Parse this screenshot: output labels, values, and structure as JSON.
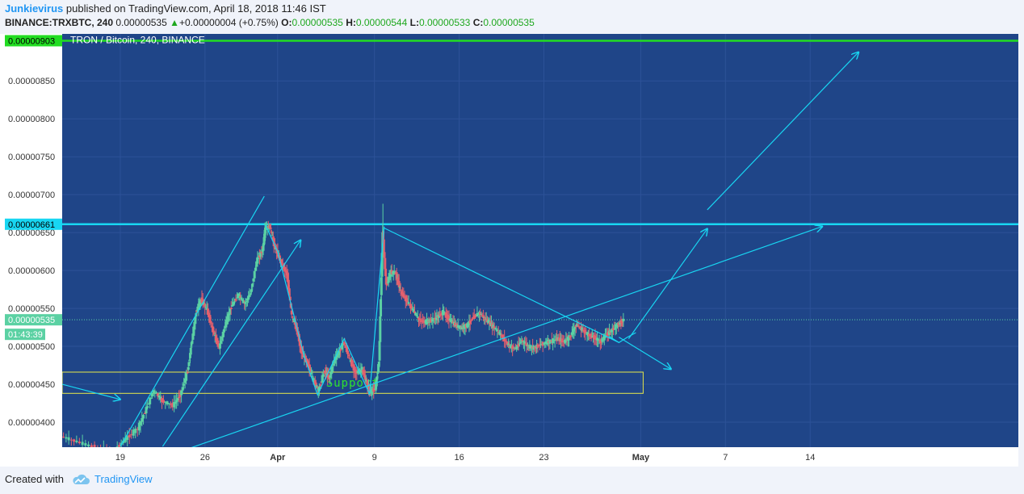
{
  "header": {
    "author": "Junkievirus",
    "published_text": "published on TradingView.com, April 18, 2018 11:46 IST",
    "symbol": "BINANCE:TRXBTC, 240",
    "last": "0.00000535",
    "change": "+0.00000004 (+0.75%)",
    "o_label": "O:",
    "o": "0.00000535",
    "h_label": "H:",
    "h": "0.00000544",
    "l_label": "L:",
    "l": "0.00000533",
    "c_label": "C:",
    "c": "0.00000535"
  },
  "footer": {
    "created_with": "Created with",
    "brand": "TradingView"
  },
  "colors": {
    "plot_bg": "#1f4588",
    "up": "#5bd1a3",
    "down": "#e4606d",
    "cyan": "#18d6f2",
    "green_line": "#22dd22",
    "yellow": "#e7e84a",
    "support_text": "#2ee02e"
  },
  "chart_data": {
    "type": "candlestick",
    "title": "TRON / Bitcoin, 240, BINANCE",
    "ylim": [
      3.67e-06,
      9.12e-06
    ],
    "y_ticks": [
      "0.00000400",
      "0.00000450",
      "0.00000500",
      "0.00000550",
      "0.00000600",
      "0.00000650",
      "0.00000700",
      "0.00000750",
      "0.00000800",
      "0.00000850"
    ],
    "y_tick_values": [
      4e-06,
      4.5e-06,
      5e-06,
      5.5e-06,
      6e-06,
      6.5e-06,
      7e-06,
      7.5e-06,
      8e-06,
      8.5e-06
    ],
    "x_ticks": [
      "19",
      "26",
      "Apr",
      "9",
      "16",
      "23",
      "May",
      "7",
      "14"
    ],
    "x_tick_days": [
      19,
      26,
      32,
      40,
      47,
      54,
      62,
      69,
      76
    ],
    "x_range_days": [
      14.2,
      93.2
    ],
    "price_tags": [
      {
        "label": "0.00000903",
        "value": 9.03e-06,
        "color": "#22dd22"
      },
      {
        "label": "0.00000661",
        "value": 6.61e-06,
        "color": "#18d6f2"
      },
      {
        "label": "0.00000535",
        "value": 5.35e-06,
        "color": "#5bd1a3"
      }
    ],
    "countdown": "01:43:39",
    "horizontal_lines": [
      {
        "value": 9.03e-06,
        "color": "#22dd22"
      },
      {
        "value": 6.61e-06,
        "color": "#18d6f2"
      }
    ],
    "support_zone": {
      "label": "Support",
      "from_day": 14.2,
      "to_day": 62.2,
      "low": 4.38e-06,
      "high": 4.66e-06
    },
    "price_path": [
      [
        14.2,
        3.81e-06
      ],
      [
        15.5,
        3.74e-06
      ],
      [
        17.0,
        3.66e-06
      ],
      [
        18.5,
        3.62e-06
      ],
      [
        19.5,
        3.78e-06
      ],
      [
        20.5,
        3.92e-06
      ],
      [
        21.2,
        4.18e-06
      ],
      [
        21.8,
        4.42e-06
      ],
      [
        22.5,
        4.28e-06
      ],
      [
        23.4,
        4.22e-06
      ],
      [
        24.0,
        4.36e-06
      ],
      [
        24.6,
        4.68e-06
      ],
      [
        24.9,
        5.02e-06
      ],
      [
        25.3,
        5.45e-06
      ],
      [
        25.7,
        5.62e-06
      ],
      [
        26.2,
        5.48e-06
      ],
      [
        26.7,
        5.2e-06
      ],
      [
        27.2,
        4.98e-06
      ],
      [
        27.7,
        5.28e-06
      ],
      [
        28.2,
        5.52e-06
      ],
      [
        28.8,
        5.68e-06
      ],
      [
        29.3,
        5.56e-06
      ],
      [
        29.8,
        5.7e-06
      ],
      [
        30.3,
        6.12e-06
      ],
      [
        30.8,
        6.28e-06
      ],
      [
        31.0,
        6.55e-06
      ],
      [
        31.4,
        6.58e-06
      ],
      [
        31.8,
        6.3e-06
      ],
      [
        32.3,
        6.12e-06
      ],
      [
        32.8,
        5.95e-06
      ],
      [
        33.2,
        5.4e-06
      ],
      [
        33.6,
        5.23e-06
      ],
      [
        34.0,
        4.92e-06
      ],
      [
        34.5,
        4.78e-06
      ],
      [
        35.0,
        4.55e-06
      ],
      [
        35.4,
        4.42e-06
      ],
      [
        35.9,
        4.68e-06
      ],
      [
        36.3,
        4.58e-06
      ],
      [
        36.7,
        4.82e-06
      ],
      [
        37.1,
        4.92e-06
      ],
      [
        37.5,
        5.06e-06
      ],
      [
        38.0,
        4.82e-06
      ],
      [
        38.5,
        4.65e-06
      ],
      [
        39.0,
        4.7e-06
      ],
      [
        39.4,
        4.5e-06
      ],
      [
        39.7,
        4.4e-06
      ],
      [
        40.1,
        4.44e-06
      ],
      [
        40.4,
        4.8e-06
      ],
      [
        40.7,
        6.5e-06
      ],
      [
        41.0,
        5.8e-06
      ],
      [
        41.4,
        5.98e-06
      ],
      [
        41.8,
        5.96e-06
      ],
      [
        42.2,
        5.72e-06
      ],
      [
        42.7,
        5.6e-06
      ],
      [
        43.2,
        5.48e-06
      ],
      [
        43.7,
        5.35e-06
      ],
      [
        44.2,
        5.32e-06
      ],
      [
        44.7,
        5.34e-06
      ],
      [
        45.2,
        5.38e-06
      ],
      [
        45.7,
        5.45e-06
      ],
      [
        46.2,
        5.36e-06
      ],
      [
        46.7,
        5.28e-06
      ],
      [
        47.2,
        5.24e-06
      ],
      [
        47.7,
        5.28e-06
      ],
      [
        48.2,
        5.38e-06
      ],
      [
        48.7,
        5.44e-06
      ],
      [
        49.2,
        5.36e-06
      ],
      [
        49.7,
        5.28e-06
      ],
      [
        50.2,
        5.2e-06
      ],
      [
        50.7,
        5.1e-06
      ],
      [
        51.2,
        5e-06
      ],
      [
        51.7,
        4.97e-06
      ],
      [
        52.2,
        5.08e-06
      ],
      [
        52.7,
        5e-06
      ],
      [
        53.2,
        4.98e-06
      ],
      [
        53.7,
        5.02e-06
      ],
      [
        54.2,
        5.05e-06
      ],
      [
        54.7,
        5.07e-06
      ],
      [
        55.2,
        5.1e-06
      ],
      [
        55.7,
        5.06e-06
      ],
      [
        56.2,
        5.13e-06
      ],
      [
        56.7,
        5.28e-06
      ],
      [
        57.2,
        5.22e-06
      ],
      [
        57.7,
        5.15e-06
      ],
      [
        58.2,
        5.12e-06
      ],
      [
        58.7,
        5.06e-06
      ],
      [
        59.2,
        5.15e-06
      ],
      [
        59.7,
        5.22e-06
      ],
      [
        60.2,
        5.3e-06
      ],
      [
        60.6,
        5.35e-06
      ]
    ],
    "drawings": [
      {
        "kind": "line",
        "from": [
          14.2,
          4.5e-06
        ],
        "to": [
          19.0,
          4.3e-06
        ],
        "arrow": true
      },
      {
        "kind": "line",
        "from": [
          19.0,
          3.68e-06
        ],
        "to": [
          30.9,
          6.98e-06
        ],
        "arrow": false
      },
      {
        "kind": "line",
        "from": [
          22.5,
          3.68e-06
        ],
        "to": [
          33.9,
          6.4e-06
        ],
        "arrow": true
      },
      {
        "kind": "line",
        "from": [
          24.8,
          3.66e-06
        ],
        "to": [
          77.0,
          6.58e-06
        ],
        "arrow": true
      },
      {
        "kind": "line",
        "from": [
          40.8,
          6.56e-06
        ],
        "to": [
          60.2,
          5.05e-06
        ],
        "arrow": false
      },
      {
        "kind": "line",
        "from": [
          60.2,
          5.12e-06
        ],
        "to": [
          64.5,
          4.7e-06
        ],
        "arrow": true
      },
      {
        "kind": "line",
        "from": [
          61.0,
          5.1e-06
        ],
        "to": [
          67.5,
          6.55e-06
        ],
        "arrow": true
      },
      {
        "kind": "line",
        "from": [
          67.5,
          6.8e-06
        ],
        "to": [
          80.0,
          8.88e-06
        ],
        "arrow": true
      }
    ],
    "zigzags": [
      [
        [
          31.0,
          6.6e-06
        ],
        [
          32.0,
          6.25e-06
        ],
        [
          34.2,
          4.87e-06
        ],
        [
          35.3,
          4.36e-06
        ],
        [
          37.5,
          5.1e-06
        ],
        [
          39.6,
          4.37e-06
        ],
        [
          40.8,
          6.58e-06
        ]
      ],
      [
        [
          59.4,
          5.13e-06
        ],
        [
          60.2,
          5.05e-06
        ],
        [
          60.9,
          5.12e-06
        ],
        [
          61.6,
          5.18e-06
        ]
      ]
    ]
  }
}
